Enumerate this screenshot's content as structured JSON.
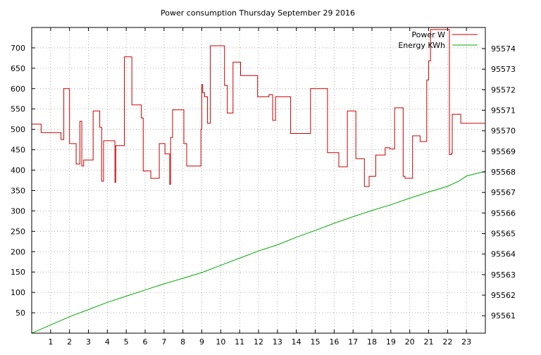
{
  "chart_data": {
    "type": "line",
    "title": "Power consumption Thursday September 29 2016",
    "grid": true,
    "legend_position": "top-right",
    "x_axis": {
      "range": [
        0,
        24
      ],
      "ticks": [
        1,
        2,
        3,
        4,
        5,
        6,
        7,
        8,
        9,
        10,
        11,
        12,
        13,
        14,
        15,
        16,
        17,
        18,
        19,
        20,
        21,
        22,
        23
      ]
    },
    "y_left": {
      "range": [
        0,
        750
      ],
      "ticks": [
        50,
        100,
        150,
        200,
        250,
        300,
        350,
        400,
        450,
        500,
        550,
        600,
        650,
        700
      ]
    },
    "y_right": {
      "range": [
        95560.15,
        95575.03
      ],
      "ticks": [
        95561,
        95562,
        95563,
        95564,
        95565,
        95566,
        95567,
        95568,
        95569,
        95570,
        95571,
        95572,
        95573,
        95574
      ]
    },
    "series": [
      {
        "name": "Power W",
        "color": "#cc0000",
        "axis": "left",
        "step": true,
        "x": [
          0,
          0.5,
          1.55,
          1.7,
          2.0,
          2.35,
          2.55,
          2.65,
          2.75,
          3.25,
          3.6,
          3.7,
          3.8,
          4.4,
          4.45,
          4.9,
          5.3,
          5.8,
          5.9,
          6.3,
          6.75,
          7.05,
          7.3,
          7.35,
          7.45,
          8.05,
          8.2,
          8.95,
          9.0,
          9.05,
          9.15,
          9.3,
          9.45,
          10.2,
          10.35,
          10.65,
          11.05,
          11.95,
          12.55,
          12.75,
          12.9,
          13.7,
          14.75,
          15.65,
          16.25,
          16.7,
          17.15,
          17.6,
          17.85,
          18.2,
          18.7,
          18.95,
          19.2,
          19.65,
          19.75,
          20.15,
          20.55,
          20.9,
          21.0,
          21.1,
          22.1,
          22.2,
          22.25,
          22.7,
          22.9,
          23.05,
          23.35,
          23.6,
          24.0
        ],
        "values": [
          513,
          492,
          475,
          600,
          465,
          415,
          520,
          410,
          425,
          545,
          505,
          373,
          472,
          370,
          460,
          678,
          560,
          528,
          398,
          380,
          465,
          440,
          365,
          480,
          548,
          465,
          410,
          500,
          610,
          590,
          580,
          515,
          705,
          608,
          540,
          665,
          632,
          580,
          585,
          522,
          580,
          490,
          600,
          443,
          408,
          545,
          428,
          360,
          385,
          437,
          455,
          452,
          553,
          385,
          380,
          484,
          470,
          621,
          668,
          745,
          438,
          441,
          537,
          515,
          515,
          515,
          515,
          515,
          515
        ]
      },
      {
        "name": "Energy KWh",
        "color": "#00aa00",
        "axis": "right",
        "x": [
          0,
          1,
          2,
          3,
          4,
          5,
          6,
          7,
          8,
          9,
          10,
          11,
          12,
          13,
          14,
          15,
          16,
          17,
          18,
          19,
          20,
          21,
          22,
          22.6,
          23,
          24
        ],
        "values": [
          95560.15,
          95560.55,
          95560.95,
          95561.3,
          95561.65,
          95561.95,
          95562.25,
          95562.55,
          95562.82,
          95563.1,
          95563.45,
          95563.8,
          95564.15,
          95564.45,
          95564.82,
          95565.15,
          95565.5,
          95565.82,
          95566.12,
          95566.4,
          95566.72,
          95567.02,
          95567.3,
          95567.55,
          95567.8,
          95568.03
        ]
      }
    ]
  }
}
